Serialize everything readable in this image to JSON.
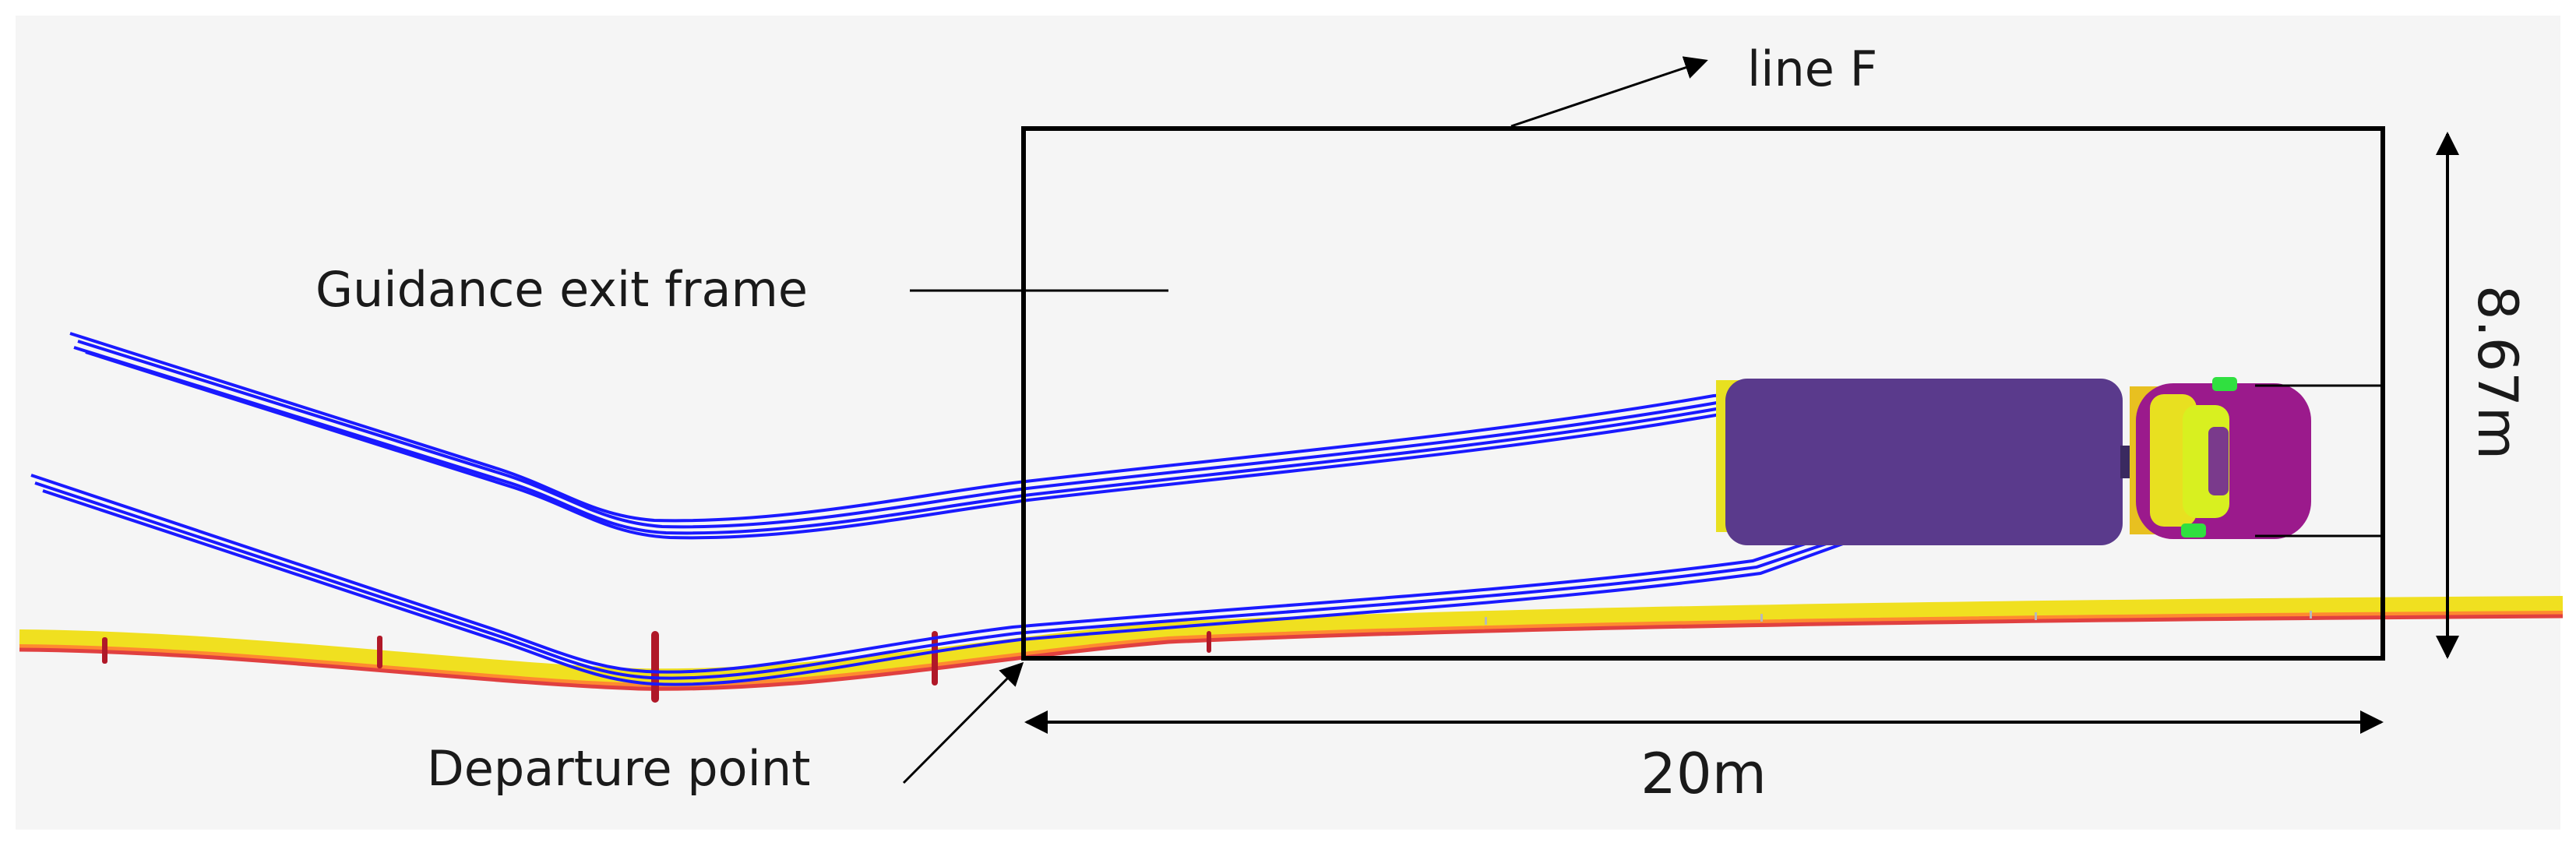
{
  "labels": {
    "guidance_exit_frame": "Guidance exit frame",
    "line_f": "line F",
    "departure_point": "Departure point",
    "length": "20m",
    "width": "8.67m"
  },
  "colors": {
    "background": "#f5f5f5",
    "track": "#1a1aff",
    "vehicle_body": "#5a3a8c",
    "vehicle_cab": "#9b1a8c",
    "vehicle_accent": "#d8f020",
    "wheel": "#30e040",
    "road_yellow": "#f0e020",
    "road_red": "#e04040",
    "frame": "#000000"
  }
}
